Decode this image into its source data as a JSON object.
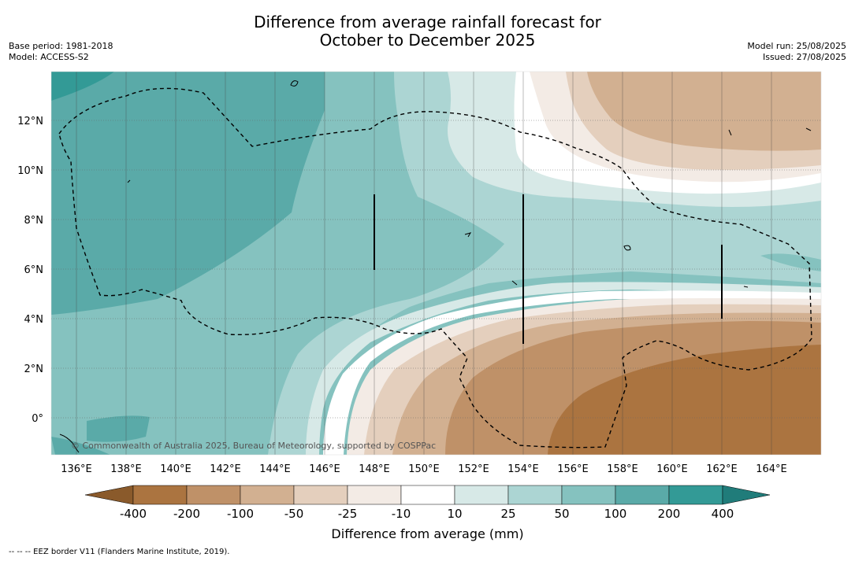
{
  "title_line1": "Difference from average rainfall forecast for",
  "title_line2": "October to December 2025",
  "base_period": "Base period: 1981-2018",
  "model": "Model: ACCESS-S2",
  "model_run": "Model run: 25/08/2025",
  "issued": "Issued: 27/08/2025",
  "credit": "© Commonwealth of Australia 2025, Bureau of Meteorology, supported by COSPPac",
  "lat_labels": [
    "12°N",
    "10°N",
    "8°N",
    "6°N",
    "4°N",
    "2°N",
    "0°"
  ],
  "lon_labels": [
    "136°E",
    "138°E",
    "140°E",
    "142°E",
    "144°E",
    "146°E",
    "148°E",
    "150°E",
    "152°E",
    "154°E",
    "156°E",
    "158°E",
    "160°E",
    "162°E",
    "164°E"
  ],
  "colorbar": {
    "title": "Difference from average (mm)",
    "labels": [
      "-400",
      "-200",
      "-100",
      "-50",
      "-25",
      "-10",
      "10",
      "25",
      "50",
      "100",
      "200",
      "400"
    ],
    "colors": [
      "#8a5a2b",
      "#ab7440",
      "#bf9168",
      "#d2b091",
      "#e4cfbd",
      "#f3ebe5",
      "#ffffff",
      "#d7e9e7",
      "#acd5d3",
      "#85c2bf",
      "#5aaaa8",
      "#339a96",
      "#207c7a"
    ]
  },
  "footnote": "--  --  -- EEZ border V11 (Flanders Marine Institute, 2019)."
}
